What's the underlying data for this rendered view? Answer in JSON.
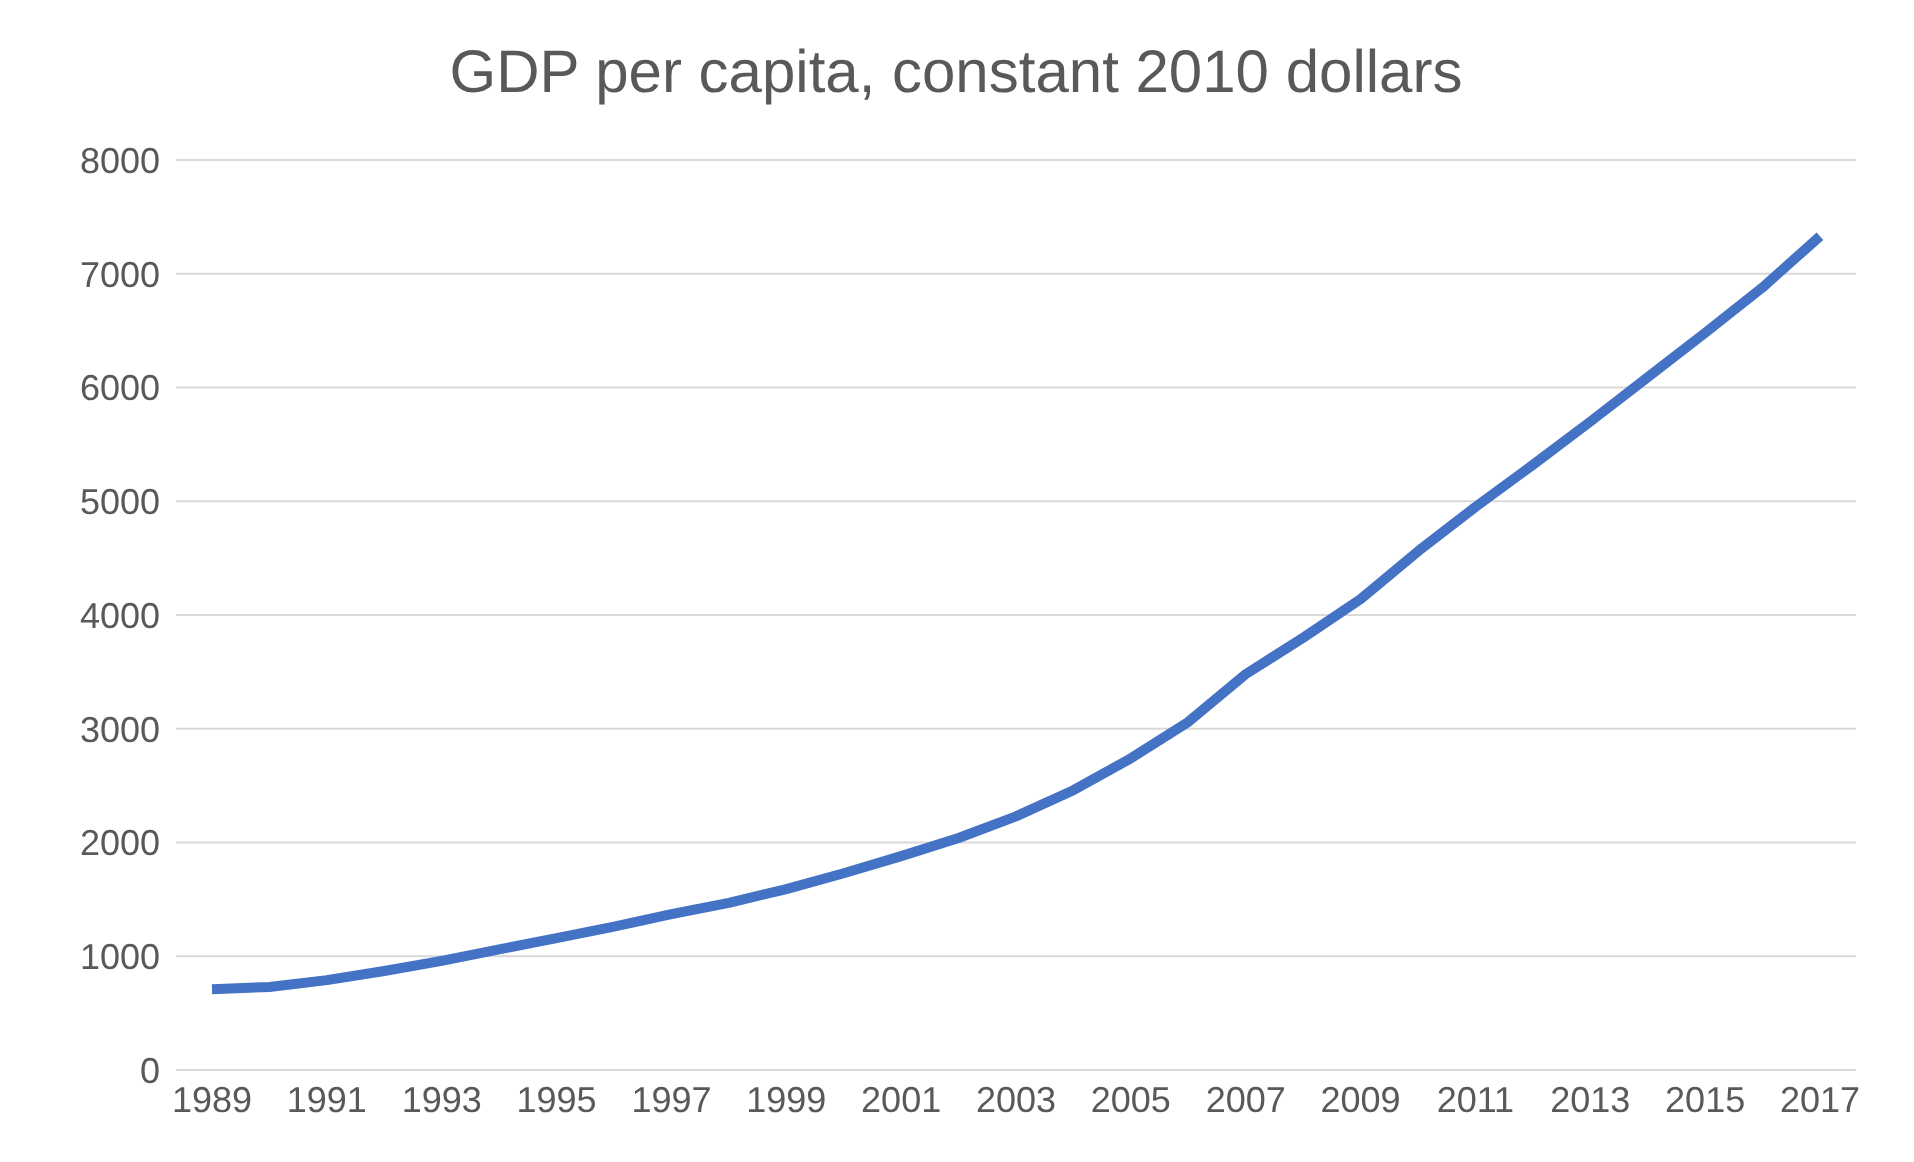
{
  "chart_data": {
    "type": "line",
    "title": "GDP per capita, constant 2010 dollars",
    "categories": [
      "1989",
      null,
      "1991",
      null,
      "1993",
      null,
      "1995",
      null,
      "1997",
      null,
      "1999",
      null,
      "2001",
      null,
      "2003",
      null,
      "2005",
      null,
      "2007",
      null,
      "2009",
      null,
      "2011",
      null,
      "2013",
      null,
      "2015",
      null,
      "2017"
    ],
    "series": [
      {
        "color": "#4472c4",
        "values": [
          710,
          730,
          790,
          870,
          960,
          1060,
          1160,
          1260,
          1370,
          1470,
          1590,
          1730,
          1880,
          2040,
          2230,
          2460,
          2740,
          3060,
          3480,
          3800,
          4140,
          4560,
          4950,
          5320,
          5700,
          6090,
          6480,
          6880,
          7330
        ]
      }
    ],
    "ylim": [
      0,
      8000
    ],
    "yticks": [
      0,
      1000,
      2000,
      3000,
      4000,
      5000,
      6000,
      7000,
      8000
    ],
    "grid": "y",
    "legend": false,
    "marker": "none",
    "line_style": "solid"
  }
}
